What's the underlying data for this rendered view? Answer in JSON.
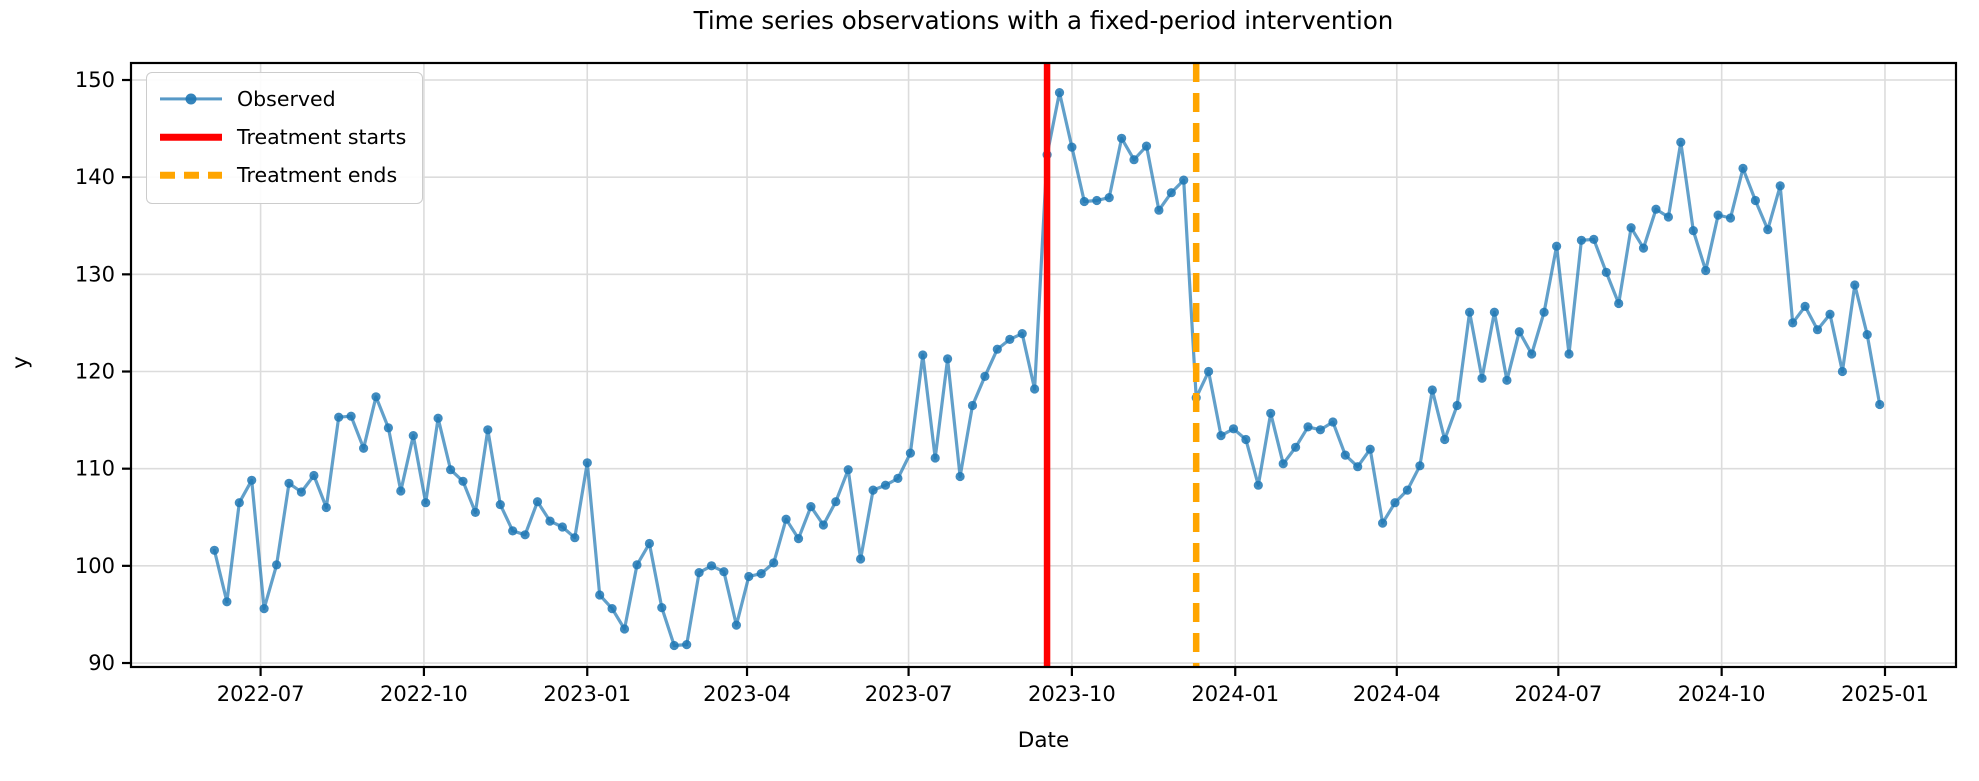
{
  "chart_data": {
    "type": "line",
    "title": "Time series observations with a fixed-period intervention",
    "xlabel": "Date",
    "ylabel": "y",
    "grid": true,
    "legend_position": "upper left",
    "xlim": [
      "2022-04-19",
      "2025-02-10"
    ],
    "ylim": [
      89.59,
      151.75
    ],
    "x_ticks": [
      {
        "date": "2022-07-01",
        "label": "2022-07"
      },
      {
        "date": "2022-10-01",
        "label": "2022-10"
      },
      {
        "date": "2023-01-01",
        "label": "2023-01"
      },
      {
        "date": "2023-04-01",
        "label": "2023-04"
      },
      {
        "date": "2023-07-01",
        "label": "2023-07"
      },
      {
        "date": "2023-10-01",
        "label": "2023-10"
      },
      {
        "date": "2024-01-01",
        "label": "2024-01"
      },
      {
        "date": "2024-04-01",
        "label": "2024-04"
      },
      {
        "date": "2024-07-01",
        "label": "2024-07"
      },
      {
        "date": "2024-10-01",
        "label": "2024-10"
      },
      {
        "date": "2025-01-01",
        "label": "2025-01"
      }
    ],
    "y_ticks": [
      90,
      100,
      110,
      120,
      130,
      140,
      150
    ],
    "series": [
      {
        "name": "Observed",
        "color": "#1f77b4",
        "line_opacity": 0.7,
        "marker_opacity": 0.85,
        "marker": "circle",
        "start_date": "2022-06-05",
        "interval_days": 7,
        "values": [
          101.6,
          96.3,
          106.5,
          108.8,
          95.6,
          100.1,
          108.5,
          107.6,
          109.3,
          106.0,
          115.3,
          115.4,
          112.1,
          117.4,
          114.2,
          107.7,
          113.4,
          106.5,
          115.2,
          109.9,
          108.7,
          105.5,
          114.0,
          106.3,
          103.6,
          103.2,
          106.6,
          104.6,
          104.0,
          102.9,
          110.6,
          97.0,
          95.6,
          93.5,
          100.1,
          102.3,
          95.7,
          91.8,
          91.9,
          99.3,
          100.0,
          99.4,
          93.9,
          98.9,
          99.2,
          100.3,
          104.8,
          102.8,
          106.1,
          104.2,
          106.6,
          109.9,
          100.7,
          107.8,
          108.3,
          109.0,
          111.6,
          121.7,
          111.1,
          121.3,
          109.2,
          116.5,
          119.5,
          122.3,
          123.3,
          123.9,
          118.2,
          142.3,
          148.7,
          143.1,
          137.5,
          137.6,
          137.9,
          144.0,
          141.8,
          143.2,
          136.6,
          138.4,
          139.7,
          117.3,
          120.0,
          113.4,
          114.1,
          113.0,
          108.3,
          115.7,
          110.5,
          112.2,
          114.3,
          114.0,
          114.8,
          111.4,
          110.2,
          112.0,
          104.4,
          106.5,
          107.8,
          110.3,
          118.1,
          113.0,
          116.5,
          126.1,
          119.3,
          126.1,
          119.1,
          124.1,
          121.8,
          126.1,
          132.9,
          121.8,
          133.5,
          133.6,
          130.2,
          127.0,
          134.8,
          132.7,
          136.7,
          135.9,
          143.6,
          134.5,
          130.4,
          136.1,
          135.8,
          140.9,
          137.6,
          134.6,
          139.1,
          125.0,
          126.7,
          124.3,
          125.9,
          120.0,
          128.9,
          123.8,
          116.6
        ]
      }
    ],
    "vlines": [
      {
        "name": "Treatment starts",
        "date": "2023-09-17",
        "color": "#ff0000",
        "style": "solid",
        "width": 6.5
      },
      {
        "name": "Treatment ends",
        "date": "2023-12-10",
        "color": "#ffa500",
        "style": "dashed",
        "width": 6.5
      }
    ],
    "grid_color": "#dcdcdc",
    "spine_color": "#000000"
  },
  "legend": {
    "items": [
      {
        "label": "Observed",
        "swatch": "line-marker",
        "color": "#1f77b4"
      },
      {
        "label": "Treatment starts",
        "swatch": "solid-line",
        "color": "#ff0000"
      },
      {
        "label": "Treatment ends",
        "swatch": "dashed-line",
        "color": "#ffa500"
      }
    ]
  }
}
